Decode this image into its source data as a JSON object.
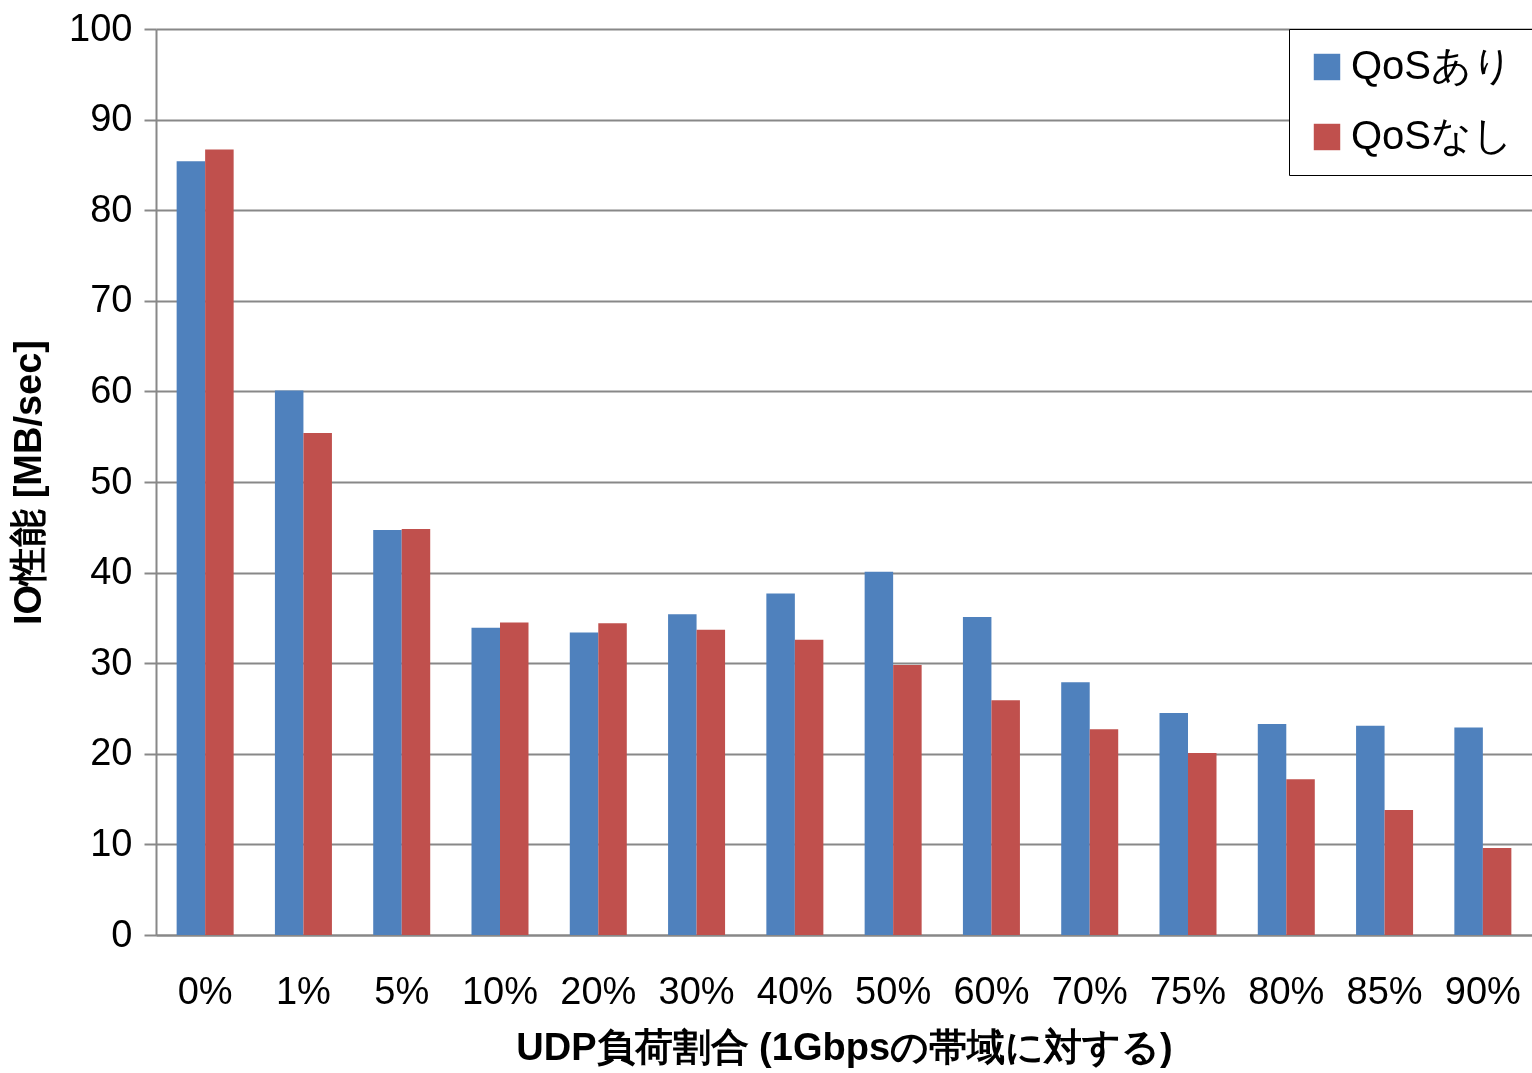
{
  "chart_data": {
    "type": "bar",
    "xlabel": "UDP負荷割合 (1Gbpsの帯域に対する)",
    "ylabel": "IO性能 [MB/sec]",
    "categories": [
      "0%",
      "1%",
      "5%",
      "10%",
      "20%",
      "30%",
      "40%",
      "50%",
      "60%",
      "70%",
      "75%",
      "80%",
      "85%",
      "90%"
    ],
    "series": [
      {
        "name": "QoSあり",
        "color": "#4f81bd",
        "values": [
          85.4,
          60.1,
          44.7,
          33.9,
          33.4,
          35.4,
          37.7,
          40.1,
          35.1,
          27.9,
          24.5,
          23.3,
          23.1,
          22.9
        ]
      },
      {
        "name": "QoSなし",
        "color": "#c0504d",
        "values": [
          86.7,
          55.4,
          44.8,
          34.5,
          34.4,
          33.7,
          32.6,
          29.8,
          25.9,
          22.7,
          20.1,
          17.2,
          13.8,
          9.6
        ]
      }
    ],
    "ylim": [
      0,
      100
    ],
    "yticks": [
      0,
      10,
      20,
      30,
      40,
      50,
      60,
      70,
      80,
      90,
      100
    ],
    "grid": "y",
    "legend": "top right"
  }
}
